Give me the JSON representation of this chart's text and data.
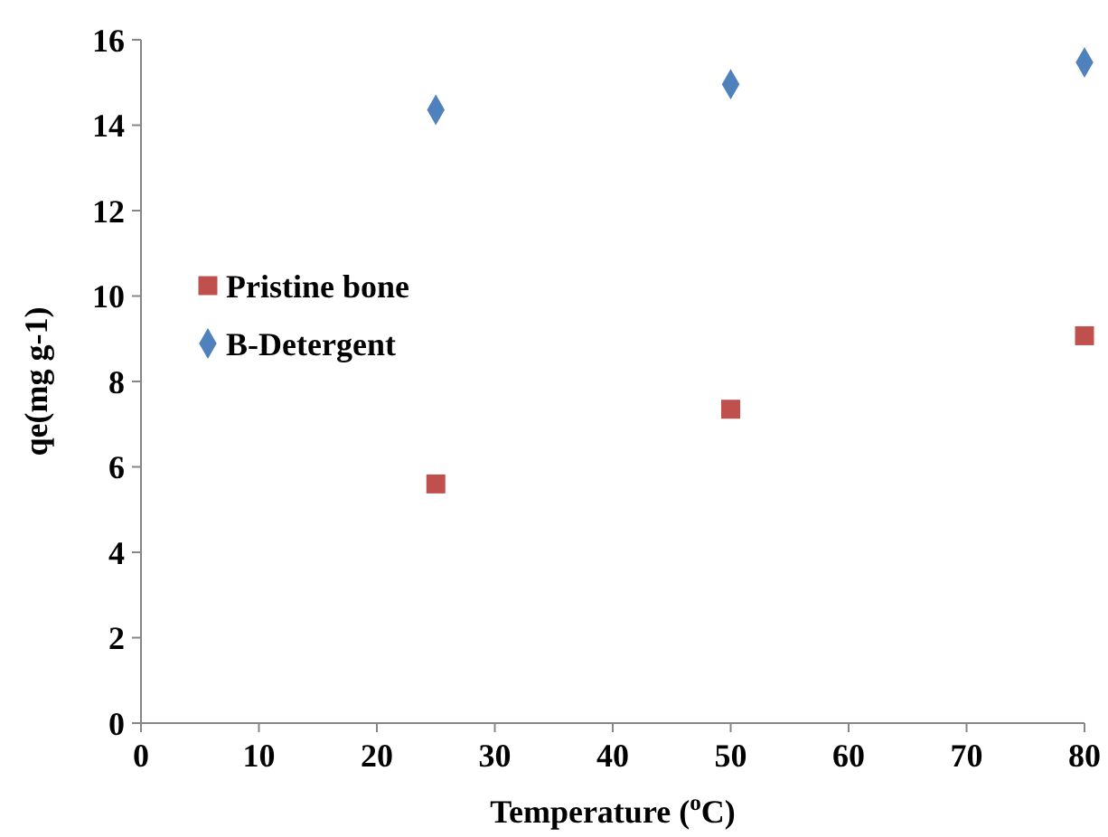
{
  "chart_data": {
    "type": "scatter",
    "xlabel": "Temperature ($^{o}$C)",
    "ylabel": "qe(mg g-1)",
    "x": [
      25,
      50,
      80
    ],
    "series": [
      {
        "name": "Pristine bone",
        "color": "#c0504d",
        "marker": "square",
        "values": [
          5.6,
          7.35,
          9.07
        ]
      },
      {
        "name": "B-Detergent",
        "color": "#4f81bd",
        "marker": "diamond",
        "values": [
          14.36,
          14.96,
          15.47
        ]
      }
    ],
    "xlim": [
      0,
      80
    ],
    "xticks": [
      0,
      10,
      20,
      30,
      40,
      50,
      60,
      70,
      80
    ],
    "ylim": [
      0,
      16
    ],
    "yticks": [
      0,
      2,
      4,
      6,
      8,
      10,
      12,
      14,
      16
    ],
    "grid": false,
    "legend": "left"
  }
}
